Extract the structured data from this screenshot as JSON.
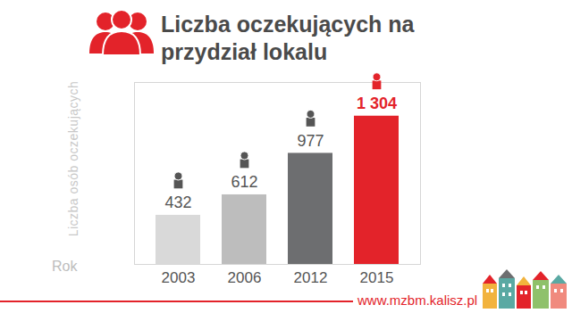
{
  "chart_data": {
    "type": "bar",
    "title": "Liczba oczekujących na przydział lokalu",
    "y_label": "Liczba osób oczekujących",
    "x_label": "Rok",
    "categories": [
      "2003",
      "2006",
      "2012",
      "2015"
    ],
    "values": [
      432,
      612,
      977,
      1304
    ],
    "value_labels": [
      "432",
      "612",
      "977",
      "1 304"
    ],
    "colors": [
      "#d9d9d9",
      "#bdbdbd",
      "#6d6e70",
      "#e3232a"
    ],
    "ylim": [
      0,
      1600
    ],
    "yticks": [],
    "tick_labels": "x",
    "data_labels": true,
    "grid": false,
    "caption": "www.mzbm.kalisz.pl"
  }
}
